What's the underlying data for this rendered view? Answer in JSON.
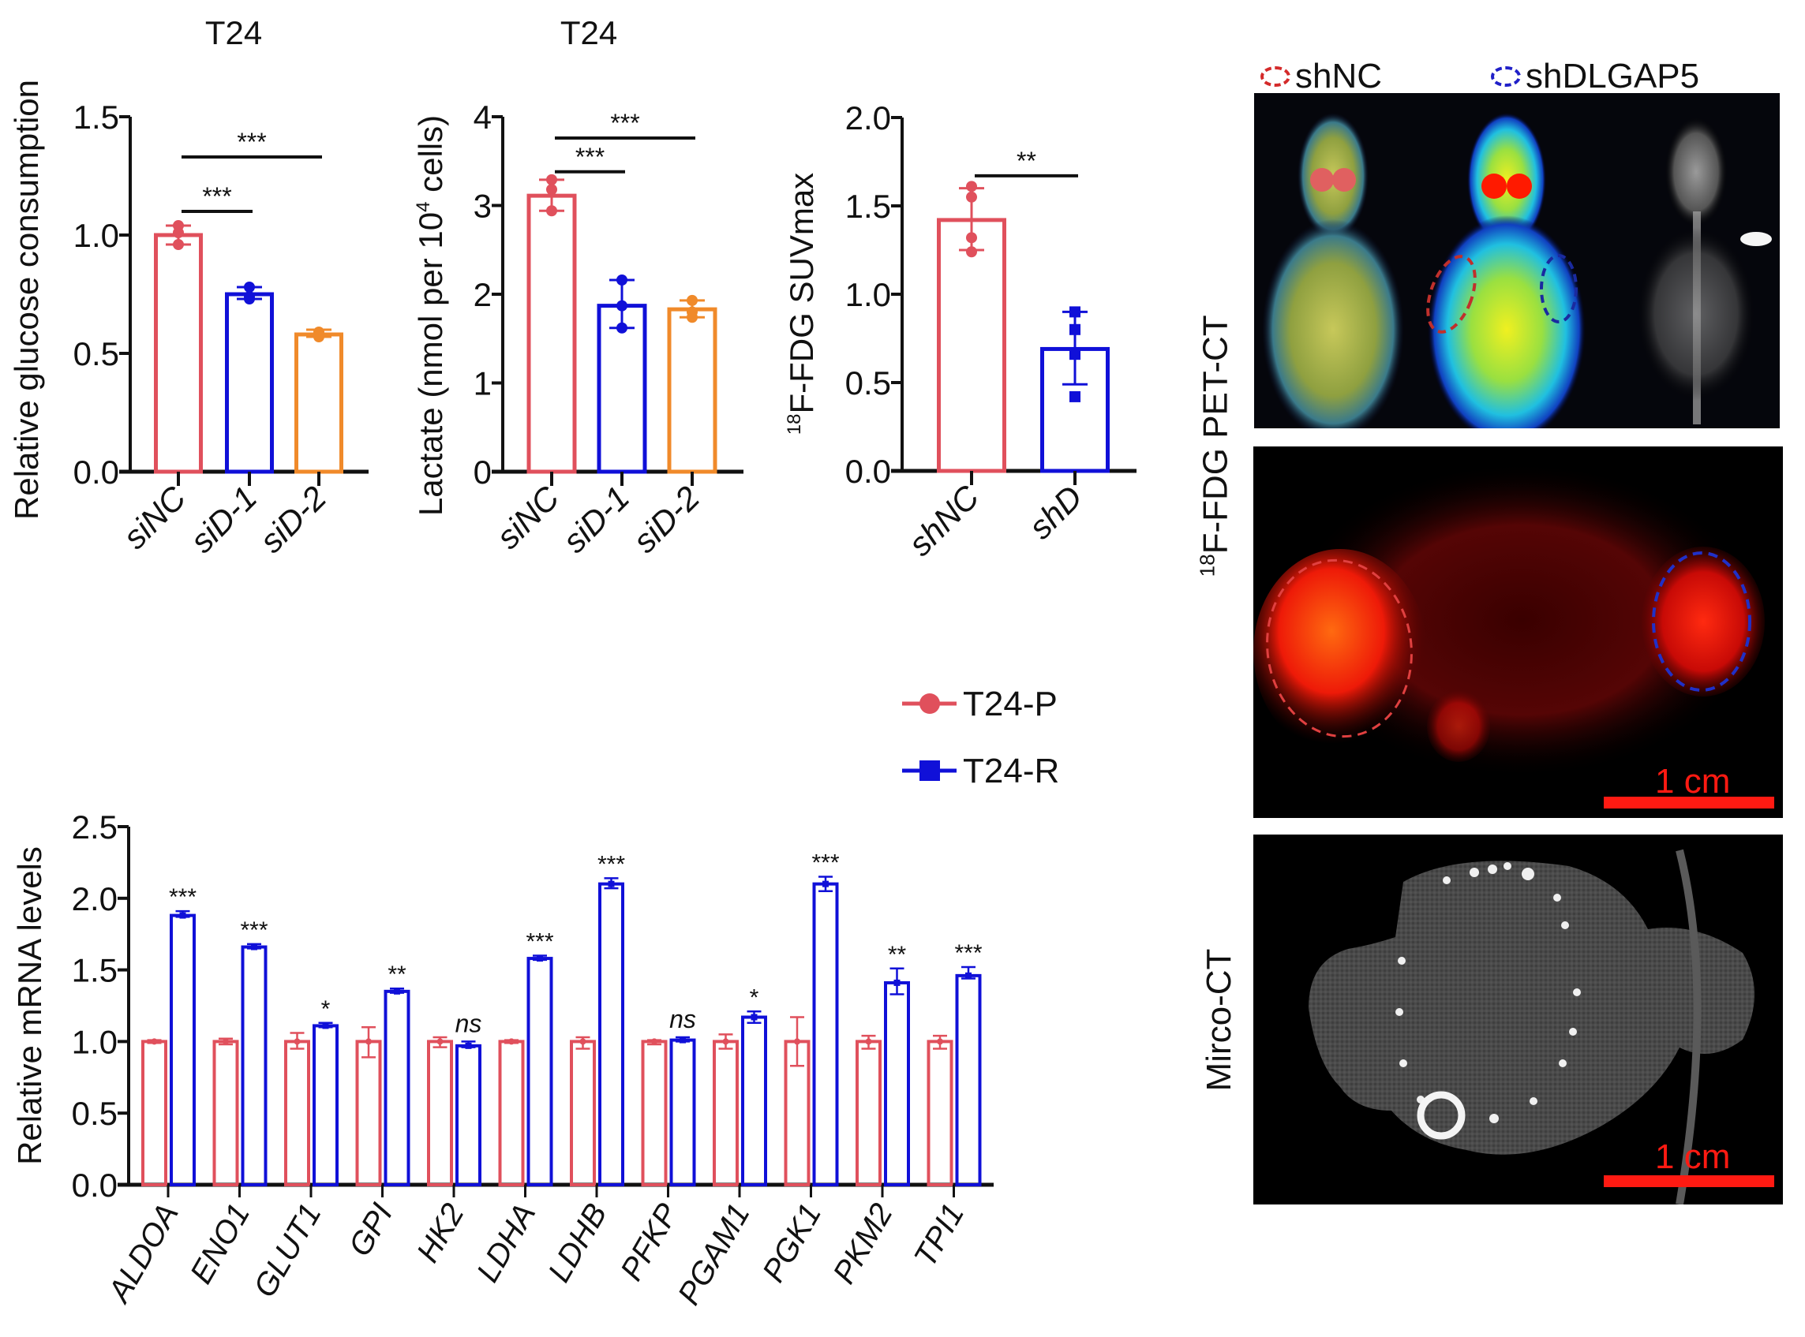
{
  "figure": {
    "right_panel": {
      "legend": [
        {
          "label": "shNC",
          "color": "#d42a2a"
        },
        {
          "label": "shDLGAP5",
          "color": "#2020c8"
        }
      ],
      "row_label_pet": "F-FDG PET-CT",
      "row_label_pet_sup": "18",
      "row_label_ct": "Mirco-CT",
      "scale_bar_label_pet": "1 cm",
      "scale_bar_label_ct": "1 cm"
    },
    "colors": {
      "red": "#e0505c",
      "blue": "#1010d8",
      "orange": "#f08a2a",
      "black": "#111111"
    }
  },
  "chart_data": [
    {
      "id": "glucose",
      "type": "bar",
      "title": "T24",
      "xlabel": "",
      "ylabel": "Relative glucose consumption",
      "ylim": [
        0,
        1.5
      ],
      "yticks": [
        "0.0",
        "0.5",
        "1.0",
        "1.5"
      ],
      "ytick_values": [
        0,
        0.5,
        1.0,
        1.5
      ],
      "categories": [
        "siNC",
        "siD-1",
        "siD-2"
      ],
      "values": [
        1.0,
        0.75,
        0.58
      ],
      "errors": [
        [
          0.96,
          1.04
        ],
        [
          0.73,
          0.78
        ],
        [
          0.57,
          0.6
        ]
      ],
      "points": [
        [
          1.04,
          1.01,
          0.96
        ],
        [
          0.78,
          0.74,
          0.73
        ],
        [
          0.59,
          0.58,
          0.57
        ]
      ],
      "bar_colors": [
        "red",
        "blue",
        "orange"
      ],
      "significance": [
        {
          "from": 0,
          "to": 1,
          "label": "***",
          "level": 1.1
        },
        {
          "from": 0,
          "to": 2,
          "label": "***",
          "level": 1.33
        }
      ]
    },
    {
      "id": "lactate",
      "type": "bar",
      "title": "T24",
      "xlabel": "",
      "ylabel": "Lactate (nmol per 10",
      "ylabel_sup": "4",
      "ylabel_tail": " cells)",
      "ylim": [
        0,
        4
      ],
      "yticks": [
        "0",
        "1",
        "2",
        "3",
        "4"
      ],
      "ytick_values": [
        0,
        1,
        2,
        3,
        4
      ],
      "categories": [
        "siNC",
        "siD-1",
        "siD-2"
      ],
      "values": [
        3.11,
        1.87,
        1.83
      ],
      "errors": [
        [
          2.94,
          3.29
        ],
        [
          1.62,
          2.16
        ],
        [
          1.74,
          1.93
        ]
      ],
      "points": [
        [
          3.29,
          3.18,
          2.94
        ],
        [
          2.16,
          1.87,
          1.62
        ],
        [
          1.93,
          1.8,
          1.74
        ]
      ],
      "bar_colors": [
        "red",
        "blue",
        "orange"
      ],
      "significance": [
        {
          "from": 0,
          "to": 1,
          "label": "***",
          "level": 3.38
        },
        {
          "from": 0,
          "to": 2,
          "label": "***",
          "level": 3.76
        }
      ]
    },
    {
      "id": "suvmax",
      "type": "bar",
      "title": "",
      "xlabel": "",
      "ylabel": "F-FDG SUVmax",
      "ylabel_sup": "18",
      "ylim": [
        0,
        2.0
      ],
      "yticks": [
        "0.0",
        "0.5",
        "1.0",
        "1.5",
        "2.0"
      ],
      "ytick_values": [
        0,
        0.5,
        1.0,
        1.5,
        2.0
      ],
      "categories": [
        "shNC",
        "shD"
      ],
      "values": [
        1.42,
        0.69
      ],
      "errors": [
        [
          1.25,
          1.6
        ],
        [
          0.49,
          0.9
        ]
      ],
      "points": [
        [
          1.61,
          1.55,
          1.32,
          1.24
        ],
        [
          0.9,
          0.8,
          0.66,
          0.42
        ]
      ],
      "point_shapes": [
        "circle",
        "square"
      ],
      "bar_colors": [
        "red",
        "blue"
      ],
      "significance": [
        {
          "from": 0,
          "to": 1,
          "label": "**",
          "level": 1.67
        }
      ]
    },
    {
      "id": "mrna",
      "type": "bar",
      "title": "",
      "xlabel": "",
      "ylabel": "Relative mRNA levels",
      "ylim": [
        0,
        2.5
      ],
      "yticks": [
        "0.0",
        "0.5",
        "1.0",
        "1.5",
        "2.0",
        "2.5"
      ],
      "ytick_values": [
        0,
        0.5,
        1.0,
        1.5,
        2.0,
        2.5
      ],
      "categories": [
        "ALDOA",
        "ENO1",
        "GLUT1",
        "GPI",
        "HK2",
        "LDHA",
        "LDHB",
        "PFKP",
        "PGAM1",
        "PGK1",
        "PKM2",
        "TPI1"
      ],
      "legend": {
        "position": "top-right",
        "entries": [
          {
            "name": "T24-P",
            "color": "red",
            "marker": "circle"
          },
          {
            "name": "T24-R",
            "color": "blue",
            "marker": "square"
          }
        ]
      },
      "series": [
        {
          "name": "T24-P",
          "color": "red",
          "values": [
            1.0,
            1.0,
            1.0,
            1.0,
            1.0,
            1.0,
            1.0,
            1.0,
            1.0,
            1.0,
            1.0,
            1.0
          ],
          "errors": [
            [
              0.99,
              1.01
            ],
            [
              0.98,
              1.02
            ],
            [
              0.95,
              1.06
            ],
            [
              0.89,
              1.1
            ],
            [
              0.96,
              1.03
            ],
            [
              0.99,
              1.01
            ],
            [
              0.95,
              1.03
            ],
            [
              0.98,
              1.01
            ],
            [
              0.95,
              1.05
            ],
            [
              0.83,
              1.17
            ],
            [
              0.95,
              1.04
            ],
            [
              0.95,
              1.04
            ]
          ]
        },
        {
          "name": "T24-R",
          "color": "blue",
          "values": [
            1.88,
            1.66,
            1.11,
            1.35,
            0.97,
            1.58,
            2.1,
            1.01,
            1.17,
            2.1,
            1.41,
            1.46
          ],
          "errors": [
            [
              1.87,
              1.91
            ],
            [
              1.65,
              1.68
            ],
            [
              1.1,
              1.13
            ],
            [
              1.34,
              1.37
            ],
            [
              0.96,
              1.0
            ],
            [
              1.57,
              1.6
            ],
            [
              2.07,
              2.14
            ],
            [
              1.0,
              1.03
            ],
            [
              1.13,
              1.21
            ],
            [
              2.05,
              2.15
            ],
            [
              1.33,
              1.51
            ],
            [
              1.44,
              1.52
            ]
          ]
        }
      ],
      "significance_labels": [
        "***",
        "***",
        "*",
        "**",
        "ns",
        "***",
        "***",
        "ns",
        "*",
        "***",
        "**",
        "***"
      ]
    }
  ]
}
